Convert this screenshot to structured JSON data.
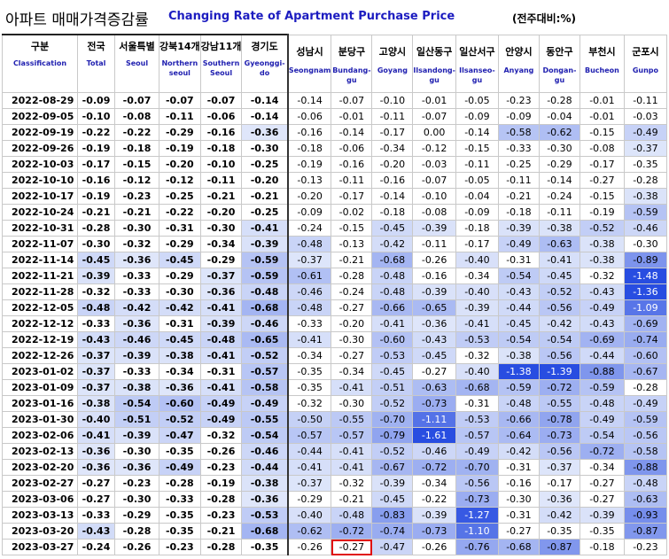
{
  "title": {
    "korean": "아파트 매매가격증감률",
    "english": "Changing Rate of Apartment Purchase Price",
    "unit": "(전주대비:%)"
  },
  "columns": [
    {
      "ko": "구분",
      "en": "Classification"
    },
    {
      "ko": "전국",
      "en": "Total"
    },
    {
      "ko": "서울특별",
      "en": "Seoul"
    },
    {
      "ko": "강북14개",
      "en": "Northern seoul"
    },
    {
      "ko": "강남11개",
      "en": "Southern Seoul"
    },
    {
      "ko": "경기도",
      "en": "Gyeonggi-do"
    },
    {
      "ko": "성남시",
      "en": "Seongnam"
    },
    {
      "ko": "분당구",
      "en": "Bundang-gu"
    },
    {
      "ko": "고양시",
      "en": "Goyang"
    },
    {
      "ko": "일산동구",
      "en": "Ilsandong-gu"
    },
    {
      "ko": "일산서구",
      "en": "Ilsanseo-gu"
    },
    {
      "ko": "안양시",
      "en": "Anyang"
    },
    {
      "ko": "동안구",
      "en": "Dongan-gu"
    },
    {
      "ko": "부천시",
      "en": "Bucheon"
    },
    {
      "ko": "군포시",
      "en": "Gunpo"
    }
  ],
  "rows": [
    [
      "2022-08-29",
      "-0.09",
      "-0.07",
      "-0.07",
      "-0.07",
      "-0.14",
      "-0.14",
      "-0.07",
      "-0.10",
      "-0.01",
      "-0.05",
      "-0.23",
      "-0.28",
      "-0.01",
      "-0.11"
    ],
    [
      "2022-09-05",
      "-0.10",
      "-0.08",
      "-0.11",
      "-0.06",
      "-0.14",
      "-0.06",
      "-0.01",
      "-0.11",
      "-0.07",
      "-0.09",
      "-0.09",
      "-0.04",
      "-0.01",
      "-0.03"
    ],
    [
      "2022-09-19",
      "-0.22",
      "-0.22",
      "-0.29",
      "-0.16",
      "-0.36",
      "-0.16",
      "-0.14",
      "-0.17",
      "0.00",
      "-0.14",
      "-0.58",
      "-0.62",
      "-0.15",
      "-0.49"
    ],
    [
      "2022-09-26",
      "-0.19",
      "-0.18",
      "-0.19",
      "-0.18",
      "-0.30",
      "-0.18",
      "-0.06",
      "-0.34",
      "-0.12",
      "-0.15",
      "-0.33",
      "-0.30",
      "-0.08",
      "-0.37"
    ],
    [
      "2022-10-03",
      "-0.17",
      "-0.15",
      "-0.20",
      "-0.10",
      "-0.25",
      "-0.19",
      "-0.16",
      "-0.20",
      "-0.03",
      "-0.11",
      "-0.25",
      "-0.29",
      "-0.17",
      "-0.35"
    ],
    [
      "2022-10-10",
      "-0.16",
      "-0.12",
      "-0.12",
      "-0.11",
      "-0.20",
      "-0.13",
      "-0.11",
      "-0.16",
      "-0.07",
      "-0.05",
      "-0.11",
      "-0.14",
      "-0.27",
      "-0.28"
    ],
    [
      "2022-10-17",
      "-0.19",
      "-0.23",
      "-0.25",
      "-0.21",
      "-0.21",
      "-0.20",
      "-0.17",
      "-0.14",
      "-0.10",
      "-0.04",
      "-0.21",
      "-0.24",
      "-0.15",
      "-0.38"
    ],
    [
      "2022-10-24",
      "-0.21",
      "-0.21",
      "-0.22",
      "-0.20",
      "-0.25",
      "-0.09",
      "-0.02",
      "-0.18",
      "-0.08",
      "-0.09",
      "-0.18",
      "-0.11",
      "-0.19",
      "-0.59"
    ],
    [
      "2022-10-31",
      "-0.28",
      "-0.30",
      "-0.31",
      "-0.30",
      "-0.41",
      "-0.24",
      "-0.15",
      "-0.45",
      "-0.39",
      "-0.18",
      "-0.39",
      "-0.38",
      "-0.52",
      "-0.46"
    ],
    [
      "2022-11-07",
      "-0.30",
      "-0.32",
      "-0.29",
      "-0.34",
      "-0.39",
      "-0.48",
      "-0.13",
      "-0.42",
      "-0.11",
      "-0.17",
      "-0.49",
      "-0.63",
      "-0.38",
      "-0.30"
    ],
    [
      "2022-11-14",
      "-0.45",
      "-0.36",
      "-0.45",
      "-0.29",
      "-0.59",
      "-0.37",
      "-0.21",
      "-0.68",
      "-0.26",
      "-0.40",
      "-0.31",
      "-0.41",
      "-0.38",
      "-0.89"
    ],
    [
      "2022-11-21",
      "-0.39",
      "-0.33",
      "-0.29",
      "-0.37",
      "-0.59",
      "-0.61",
      "-0.28",
      "-0.48",
      "-0.16",
      "-0.34",
      "-0.54",
      "-0.45",
      "-0.32",
      "-1.48"
    ],
    [
      "2022-11-28",
      "-0.32",
      "-0.33",
      "-0.30",
      "-0.36",
      "-0.48",
      "-0.46",
      "-0.24",
      "-0.48",
      "-0.39",
      "-0.40",
      "-0.43",
      "-0.52",
      "-0.43",
      "-1.36"
    ],
    [
      "2022-12-05",
      "-0.48",
      "-0.42",
      "-0.42",
      "-0.41",
      "-0.68",
      "-0.48",
      "-0.27",
      "-0.66",
      "-0.65",
      "-0.39",
      "-0.44",
      "-0.56",
      "-0.49",
      "-1.09"
    ],
    [
      "2022-12-12",
      "-0.33",
      "-0.36",
      "-0.31",
      "-0.39",
      "-0.46",
      "-0.33",
      "-0.20",
      "-0.41",
      "-0.36",
      "-0.41",
      "-0.45",
      "-0.42",
      "-0.43",
      "-0.69"
    ],
    [
      "2022-12-19",
      "-0.43",
      "-0.46",
      "-0.45",
      "-0.48",
      "-0.65",
      "-0.41",
      "-0.30",
      "-0.60",
      "-0.43",
      "-0.53",
      "-0.54",
      "-0.54",
      "-0.69",
      "-0.74"
    ],
    [
      "2022-12-26",
      "-0.37",
      "-0.39",
      "-0.38",
      "-0.41",
      "-0.52",
      "-0.34",
      "-0.27",
      "-0.53",
      "-0.45",
      "-0.32",
      "-0.38",
      "-0.56",
      "-0.44",
      "-0.60"
    ],
    [
      "2023-01-02",
      "-0.37",
      "-0.33",
      "-0.34",
      "-0.31",
      "-0.57",
      "-0.35",
      "-0.34",
      "-0.45",
      "-0.27",
      "-0.40",
      "-1.38",
      "-1.39",
      "-0.88",
      "-0.67"
    ],
    [
      "2023-01-09",
      "-0.37",
      "-0.38",
      "-0.36",
      "-0.41",
      "-0.58",
      "-0.35",
      "-0.41",
      "-0.51",
      "-0.63",
      "-0.68",
      "-0.59",
      "-0.72",
      "-0.59",
      "-0.28"
    ],
    [
      "2023-01-16",
      "-0.38",
      "-0.54",
      "-0.60",
      "-0.49",
      "-0.49",
      "-0.32",
      "-0.30",
      "-0.52",
      "-0.73",
      "-0.31",
      "-0.48",
      "-0.55",
      "-0.48",
      "-0.49"
    ],
    [
      "2023-01-30",
      "-0.40",
      "-0.51",
      "-0.52",
      "-0.49",
      "-0.55",
      "-0.50",
      "-0.55",
      "-0.70",
      "-1.11",
      "-0.53",
      "-0.66",
      "-0.78",
      "-0.49",
      "-0.59"
    ],
    [
      "2023-02-06",
      "-0.41",
      "-0.39",
      "-0.47",
      "-0.32",
      "-0.54",
      "-0.57",
      "-0.57",
      "-0.79",
      "-1.61",
      "-0.57",
      "-0.64",
      "-0.73",
      "-0.54",
      "-0.56"
    ],
    [
      "2023-02-13",
      "-0.36",
      "-0.30",
      "-0.35",
      "-0.26",
      "-0.46",
      "-0.44",
      "-0.41",
      "-0.52",
      "-0.46",
      "-0.49",
      "-0.42",
      "-0.56",
      "-0.72",
      "-0.58"
    ],
    [
      "2023-02-20",
      "-0.36",
      "-0.36",
      "-0.49",
      "-0.23",
      "-0.44",
      "-0.41",
      "-0.41",
      "-0.67",
      "-0.72",
      "-0.70",
      "-0.31",
      "-0.37",
      "-0.34",
      "-0.88"
    ],
    [
      "2023-02-27",
      "-0.27",
      "-0.23",
      "-0.28",
      "-0.19",
      "-0.38",
      "-0.37",
      "-0.32",
      "-0.39",
      "-0.34",
      "-0.56",
      "-0.16",
      "-0.17",
      "-0.27",
      "-0.48"
    ],
    [
      "2023-03-06",
      "-0.27",
      "-0.30",
      "-0.33",
      "-0.28",
      "-0.36",
      "-0.29",
      "-0.21",
      "-0.45",
      "-0.22",
      "-0.73",
      "-0.30",
      "-0.36",
      "-0.27",
      "-0.63"
    ],
    [
      "2023-03-13",
      "-0.33",
      "-0.29",
      "-0.35",
      "-0.23",
      "-0.53",
      "-0.40",
      "-0.48",
      "-0.83",
      "-0.39",
      "-1.27",
      "-0.31",
      "-0.42",
      "-0.39",
      "-0.93"
    ],
    [
      "2023-03-20",
      "-0.43",
      "-0.28",
      "-0.35",
      "-0.21",
      "-0.68",
      "-0.62",
      "-0.72",
      "-0.74",
      "-0.73",
      "-1.10",
      "-0.27",
      "-0.35",
      "-0.35",
      "-0.87"
    ],
    [
      "2023-03-27",
      "-0.24",
      "-0.26",
      "-0.23",
      "-0.28",
      "-0.35",
      "-0.26",
      "-0.27",
      "-0.47",
      "-0.26",
      "-0.76",
      "-0.68",
      "-0.87",
      "-0.18",
      "-0.23"
    ]
  ],
  "highlight": {
    "row": 28,
    "col": 7,
    "color": "#e01010"
  }
}
